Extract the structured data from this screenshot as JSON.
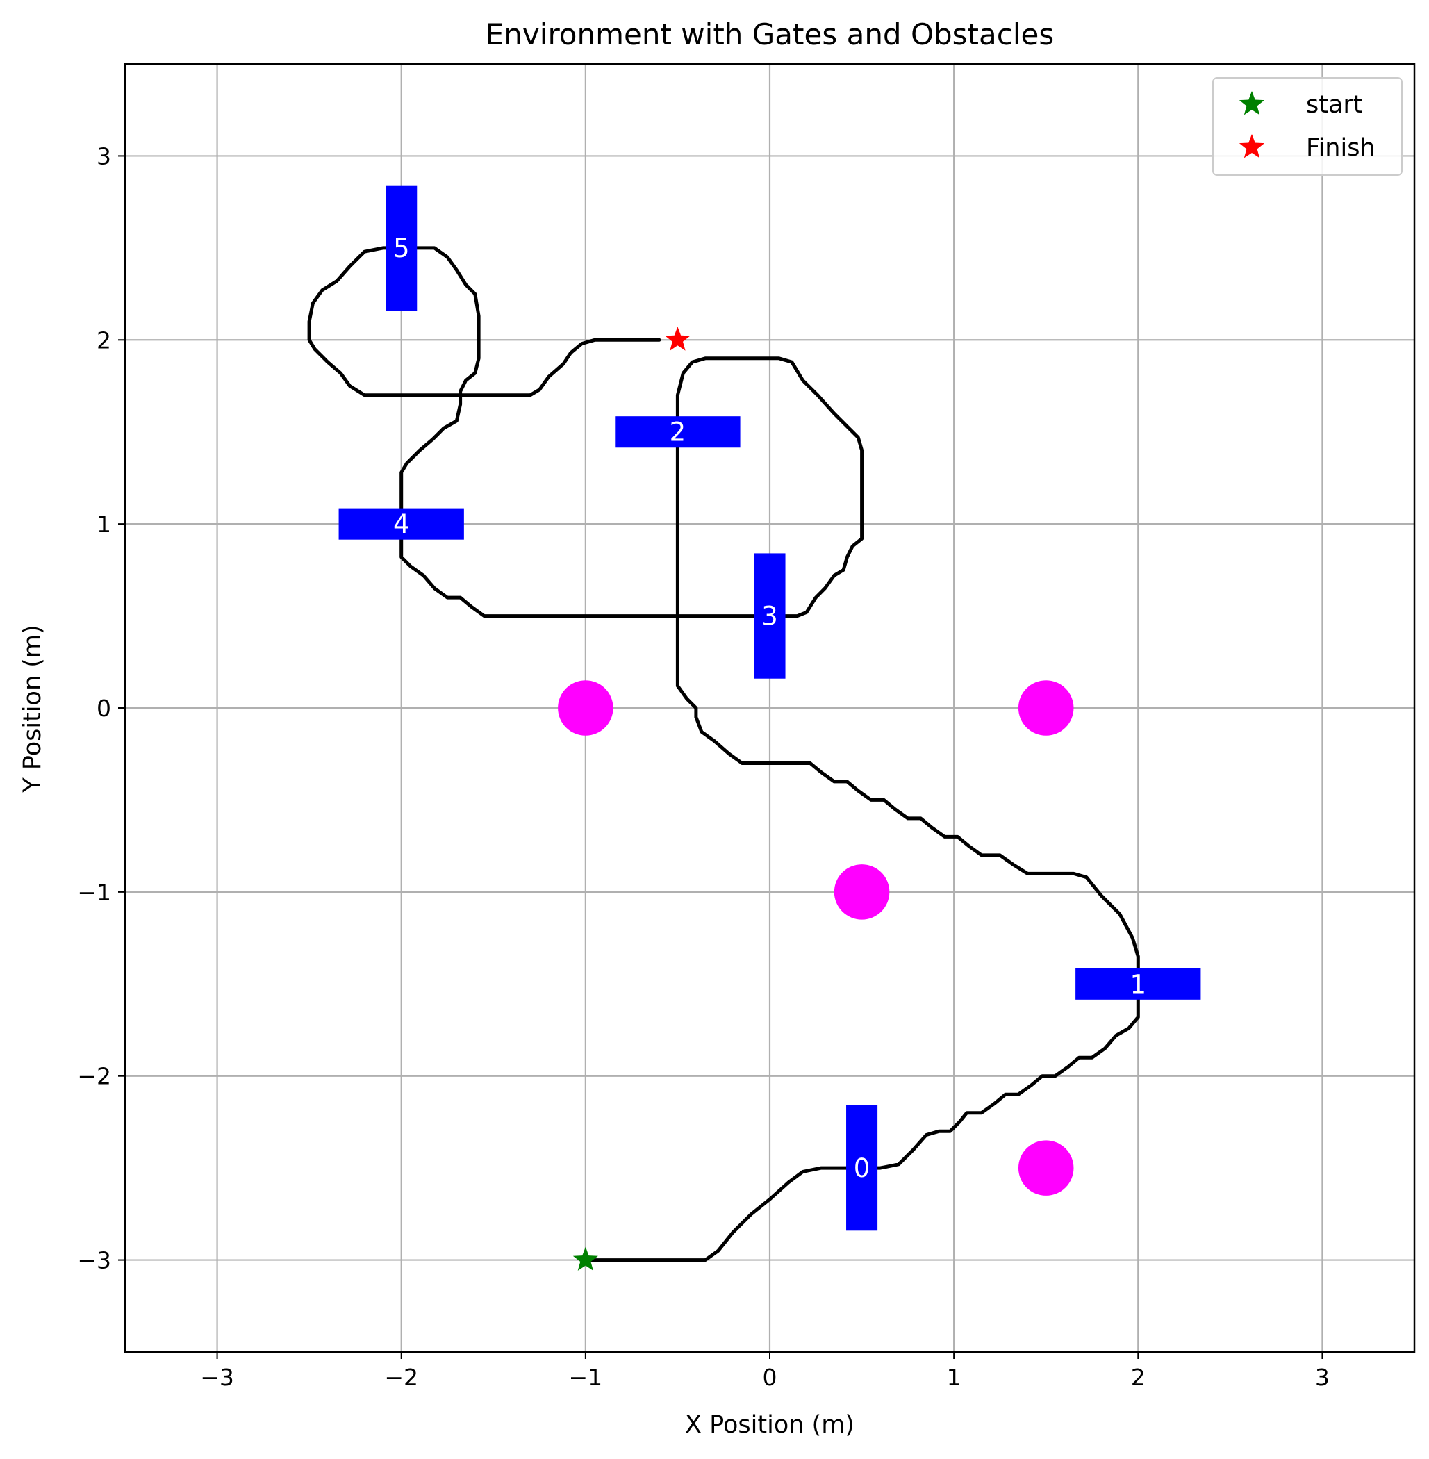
{
  "chart_data": {
    "type": "scatter",
    "title": "Environment with Gates and Obstacles",
    "xlabel": "X Position (m)",
    "ylabel": "Y Position (m)",
    "xlim": [
      -3.5,
      3.5
    ],
    "ylim": [
      -3.5,
      3.5
    ],
    "xticks": [
      -3,
      -2,
      -1,
      0,
      1,
      2,
      3
    ],
    "yticks": [
      -3,
      -2,
      -1,
      0,
      1,
      2,
      3
    ],
    "xtick_labels": [
      "−3",
      "−2",
      "−1",
      "0",
      "1",
      "2",
      "3"
    ],
    "ytick_labels": [
      "−3",
      "−2",
      "−1",
      "0",
      "1",
      "2",
      "3"
    ],
    "grid": true,
    "legend_position": "top-right",
    "legend": [
      {
        "label": "start",
        "marker": "star",
        "color": "#008000"
      },
      {
        "label": "Finish",
        "marker": "star",
        "color": "#ff0000"
      }
    ],
    "start": {
      "x": -1.0,
      "y": -3.0,
      "color": "#008000"
    },
    "finish": {
      "x": -0.5,
      "y": 2.0,
      "color": "#ff0000"
    },
    "gate_color": "#0000ff",
    "gates": [
      {
        "label": "0",
        "x": 0.5,
        "y": -2.5,
        "orientation": "vertical"
      },
      {
        "label": "1",
        "x": 2.0,
        "y": -1.5,
        "orientation": "horizontal"
      },
      {
        "label": "2",
        "x": -0.5,
        "y": 1.5,
        "orientation": "horizontal"
      },
      {
        "label": "3",
        "x": 0.0,
        "y": 0.5,
        "orientation": "vertical"
      },
      {
        "label": "4",
        "x": -2.0,
        "y": 1.0,
        "orientation": "horizontal"
      },
      {
        "label": "5",
        "x": -2.0,
        "y": 2.5,
        "orientation": "vertical"
      }
    ],
    "obstacle_color": "#ff00ff",
    "obstacles": [
      {
        "x": -1.0,
        "y": 0.0
      },
      {
        "x": 1.5,
        "y": 0.0
      },
      {
        "x": 0.5,
        "y": -1.0
      },
      {
        "x": 1.5,
        "y": -2.5
      }
    ],
    "trajectory_color": "#000000",
    "trajectory": [
      [
        -1.0,
        -3.0
      ],
      [
        -0.45,
        -3.0
      ],
      [
        -0.35,
        -3.0
      ],
      [
        -0.28,
        -2.95
      ],
      [
        -0.2,
        -2.85
      ],
      [
        -0.1,
        -2.75
      ],
      [
        0.0,
        -2.67
      ],
      [
        0.1,
        -2.58
      ],
      [
        0.18,
        -2.52
      ],
      [
        0.28,
        -2.5
      ],
      [
        0.4,
        -2.5
      ],
      [
        0.5,
        -2.5
      ],
      [
        0.6,
        -2.5
      ],
      [
        0.7,
        -2.48
      ],
      [
        0.78,
        -2.4
      ],
      [
        0.85,
        -2.32
      ],
      [
        0.92,
        -2.3
      ],
      [
        0.98,
        -2.3
      ],
      [
        1.03,
        -2.25
      ],
      [
        1.07,
        -2.2
      ],
      [
        1.15,
        -2.2
      ],
      [
        1.22,
        -2.15
      ],
      [
        1.28,
        -2.1
      ],
      [
        1.35,
        -2.1
      ],
      [
        1.42,
        -2.05
      ],
      [
        1.48,
        -2.0
      ],
      [
        1.55,
        -2.0
      ],
      [
        1.62,
        -1.95
      ],
      [
        1.68,
        -1.9
      ],
      [
        1.75,
        -1.9
      ],
      [
        1.82,
        -1.85
      ],
      [
        1.88,
        -1.78
      ],
      [
        1.95,
        -1.74
      ],
      [
        2.0,
        -1.68
      ],
      [
        2.0,
        -1.5
      ],
      [
        2.0,
        -1.35
      ],
      [
        1.97,
        -1.25
      ],
      [
        1.9,
        -1.12
      ],
      [
        1.8,
        -1.02
      ],
      [
        1.72,
        -0.92
      ],
      [
        1.65,
        -0.9
      ],
      [
        1.5,
        -0.9
      ],
      [
        1.4,
        -0.9
      ],
      [
        1.32,
        -0.85
      ],
      [
        1.25,
        -0.8
      ],
      [
        1.15,
        -0.8
      ],
      [
        1.08,
        -0.75
      ],
      [
        1.02,
        -0.7
      ],
      [
        0.95,
        -0.7
      ],
      [
        0.88,
        -0.65
      ],
      [
        0.82,
        -0.6
      ],
      [
        0.75,
        -0.6
      ],
      [
        0.68,
        -0.55
      ],
      [
        0.62,
        -0.5
      ],
      [
        0.55,
        -0.5
      ],
      [
        0.48,
        -0.45
      ],
      [
        0.42,
        -0.4
      ],
      [
        0.35,
        -0.4
      ],
      [
        0.28,
        -0.35
      ],
      [
        0.22,
        -0.3
      ],
      [
        0.1,
        -0.3
      ],
      [
        -0.05,
        -0.3
      ],
      [
        -0.15,
        -0.3
      ],
      [
        -0.22,
        -0.25
      ],
      [
        -0.3,
        -0.18
      ],
      [
        -0.37,
        -0.13
      ],
      [
        -0.4,
        -0.05
      ],
      [
        -0.4,
        0.0
      ],
      [
        -0.45,
        0.05
      ],
      [
        -0.5,
        0.12
      ],
      [
        -0.5,
        0.3
      ],
      [
        -0.5,
        0.5
      ],
      [
        -0.5,
        0.8
      ],
      [
        -0.5,
        1.1
      ],
      [
        -0.5,
        1.4
      ],
      [
        -0.5,
        1.55
      ],
      [
        -0.5,
        1.7
      ],
      [
        -0.47,
        1.82
      ],
      [
        -0.42,
        1.88
      ],
      [
        -0.35,
        1.9
      ],
      [
        -0.2,
        1.9
      ],
      [
        -0.05,
        1.9
      ],
      [
        0.05,
        1.9
      ],
      [
        0.12,
        1.88
      ],
      [
        0.18,
        1.78
      ],
      [
        0.26,
        1.7
      ],
      [
        0.35,
        1.6
      ],
      [
        0.42,
        1.53
      ],
      [
        0.48,
        1.47
      ],
      [
        0.5,
        1.4
      ],
      [
        0.5,
        1.2
      ],
      [
        0.5,
        1.0
      ],
      [
        0.5,
        0.92
      ],
      [
        0.45,
        0.88
      ],
      [
        0.42,
        0.82
      ],
      [
        0.4,
        0.75
      ],
      [
        0.35,
        0.72
      ],
      [
        0.3,
        0.65
      ],
      [
        0.25,
        0.6
      ],
      [
        0.2,
        0.52
      ],
      [
        0.15,
        0.5
      ],
      [
        0.05,
        0.5
      ],
      [
        -0.05,
        0.5
      ],
      [
        -0.3,
        0.5
      ],
      [
        -0.6,
        0.5
      ],
      [
        -0.9,
        0.5
      ],
      [
        -1.2,
        0.5
      ],
      [
        -1.45,
        0.5
      ],
      [
        -1.55,
        0.5
      ],
      [
        -1.62,
        0.55
      ],
      [
        -1.68,
        0.6
      ],
      [
        -1.75,
        0.6
      ],
      [
        -1.82,
        0.65
      ],
      [
        -1.88,
        0.72
      ],
      [
        -1.95,
        0.77
      ],
      [
        -2.0,
        0.82
      ],
      [
        -2.0,
        1.0
      ],
      [
        -2.0,
        1.28
      ],
      [
        -1.97,
        1.33
      ],
      [
        -1.9,
        1.4
      ],
      [
        -1.83,
        1.46
      ],
      [
        -1.77,
        1.52
      ],
      [
        -1.7,
        1.56
      ],
      [
        -1.68,
        1.65
      ],
      [
        -1.68,
        1.72
      ],
      [
        -1.65,
        1.78
      ],
      [
        -1.6,
        1.82
      ],
      [
        -1.58,
        1.9
      ],
      [
        -1.58,
        2.0
      ],
      [
        -1.58,
        2.13
      ],
      [
        -1.6,
        2.25
      ],
      [
        -1.65,
        2.3
      ],
      [
        -1.7,
        2.38
      ],
      [
        -1.75,
        2.45
      ],
      [
        -1.82,
        2.5
      ],
      [
        -1.9,
        2.5
      ],
      [
        -2.0,
        2.5
      ],
      [
        -2.1,
        2.5
      ],
      [
        -2.2,
        2.48
      ],
      [
        -2.28,
        2.4
      ],
      [
        -2.35,
        2.32
      ],
      [
        -2.43,
        2.27
      ],
      [
        -2.48,
        2.2
      ],
      [
        -2.5,
        2.1
      ],
      [
        -2.5,
        2.0
      ],
      [
        -2.47,
        1.95
      ],
      [
        -2.4,
        1.88
      ],
      [
        -2.33,
        1.82
      ],
      [
        -2.28,
        1.75
      ],
      [
        -2.2,
        1.7
      ],
      [
        -2.0,
        1.7
      ],
      [
        -1.7,
        1.7
      ],
      [
        -1.4,
        1.7
      ],
      [
        -1.3,
        1.7
      ],
      [
        -1.25,
        1.73
      ],
      [
        -1.2,
        1.8
      ],
      [
        -1.12,
        1.87
      ],
      [
        -1.08,
        1.93
      ],
      [
        -1.02,
        1.98
      ],
      [
        -0.95,
        2.0
      ],
      [
        -0.8,
        2.0
      ],
      [
        -0.6,
        2.0
      ]
    ]
  }
}
